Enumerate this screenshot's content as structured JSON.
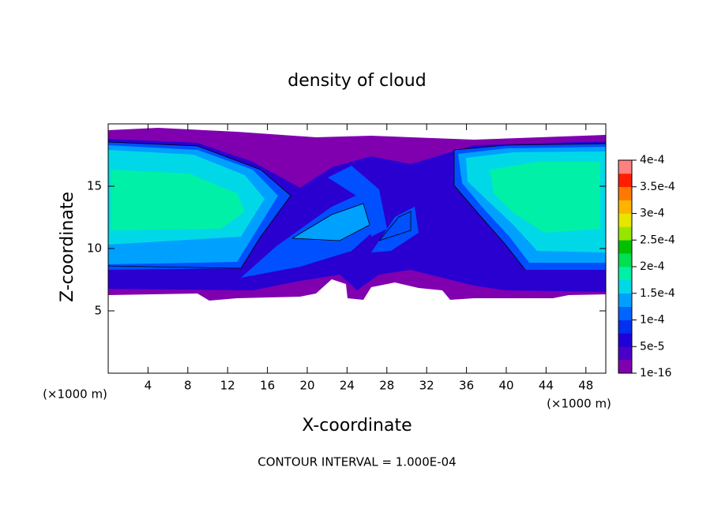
{
  "chart_data": {
    "type": "contour",
    "title": "density of cloud",
    "x_label": "X-coordinate",
    "y_label": "Z-coordinate",
    "x_unit": "(×1000 m)",
    "y_unit": "(×1000 m)",
    "xlim": [
      0,
      50
    ],
    "ylim": [
      0,
      20
    ],
    "xticks": [
      4,
      8,
      12,
      16,
      20,
      24,
      28,
      32,
      36,
      40,
      44,
      48
    ],
    "yticks": [
      5,
      10,
      15
    ],
    "annotation": "CONTOUR INTERVAL = 1.000E-04",
    "colorbar": {
      "lim": [
        0,
        0.0004
      ],
      "ticks": [
        1e-16,
        {
          "value": 5e-05,
          "label": "5e-5"
        },
        {
          "value": 0.0001,
          "label": "1e-4"
        },
        {
          "value": 0.00015,
          "label": "1.5e-4"
        },
        {
          "value": 0.0002,
          "label": "2e-4"
        },
        {
          "value": 0.00025,
          "label": "2.5e-4"
        },
        {
          "value": 0.0003,
          "label": "3e-4"
        },
        {
          "value": 0.00035,
          "label": "3.5e-4"
        },
        {
          "value": 0.0004,
          "label": "4e-4"
        }
      ],
      "colors": [
        "#8000b0",
        "#4a00c8",
        "#2000d8",
        "#0030f0",
        "#0064ff",
        "#00a0ff",
        "#00d8e8",
        "#00f0a8",
        "#00e050",
        "#00c000",
        "#96e600",
        "#e6e600",
        "#ffb400",
        "#ff7800",
        "#ff1e00",
        "#ff8080"
      ]
    }
  }
}
